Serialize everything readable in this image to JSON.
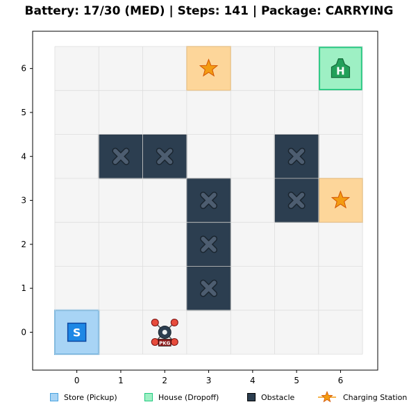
{
  "header": {
    "status_line": "Battery: 17/30 (MED)  |  Steps: 141  |  Package: CARRYING"
  },
  "grid": {
    "cols": 7,
    "rows": 7,
    "x_ticks": [
      "0",
      "1",
      "2",
      "3",
      "4",
      "5",
      "6"
    ],
    "y_ticks": [
      "0",
      "1",
      "2",
      "3",
      "4",
      "5",
      "6"
    ],
    "cells": [
      {
        "type": "store",
        "col": 0,
        "row": 0,
        "label": "S"
      },
      {
        "type": "house",
        "col": 6,
        "row": 6,
        "label": "H"
      },
      {
        "type": "charging",
        "col": 3,
        "row": 6
      },
      {
        "type": "charging",
        "col": 6,
        "row": 3
      },
      {
        "type": "obstacle",
        "col": 1,
        "row": 4
      },
      {
        "type": "obstacle",
        "col": 2,
        "row": 4
      },
      {
        "type": "obstacle",
        "col": 5,
        "row": 4
      },
      {
        "type": "obstacle",
        "col": 3,
        "row": 3
      },
      {
        "type": "obstacle",
        "col": 5,
        "row": 3
      },
      {
        "type": "obstacle",
        "col": 3,
        "row": 2
      },
      {
        "type": "obstacle",
        "col": 3,
        "row": 1
      }
    ],
    "drone": {
      "col": 2,
      "row": 0,
      "badge": "PKG"
    }
  },
  "colors": {
    "store_fill": "#a8d4f5",
    "store_edge": "#4aa3df",
    "store_icon": "#1e88e5",
    "house_fill": "#9ef0c4",
    "house_edge": "#22c980",
    "house_icon": "#22a05a",
    "charging_fill": "#fdd69a",
    "charging_edge": "#f5b046",
    "star": "#f39c12",
    "obstacle_fill": "#2c3e50",
    "obstacle_mark": "#4d5d70",
    "grid_bg": "#f5f5f5",
    "grid_line": "#dddddd",
    "rotor": "#e74c3c",
    "drone_body": "#2c3e50",
    "badge_fill": "#8b1a1a"
  },
  "legend": {
    "store": "Store (Pickup)",
    "house": "House (Dropoff)",
    "obstacle": "Obstacle",
    "charging": "Charging Station"
  }
}
